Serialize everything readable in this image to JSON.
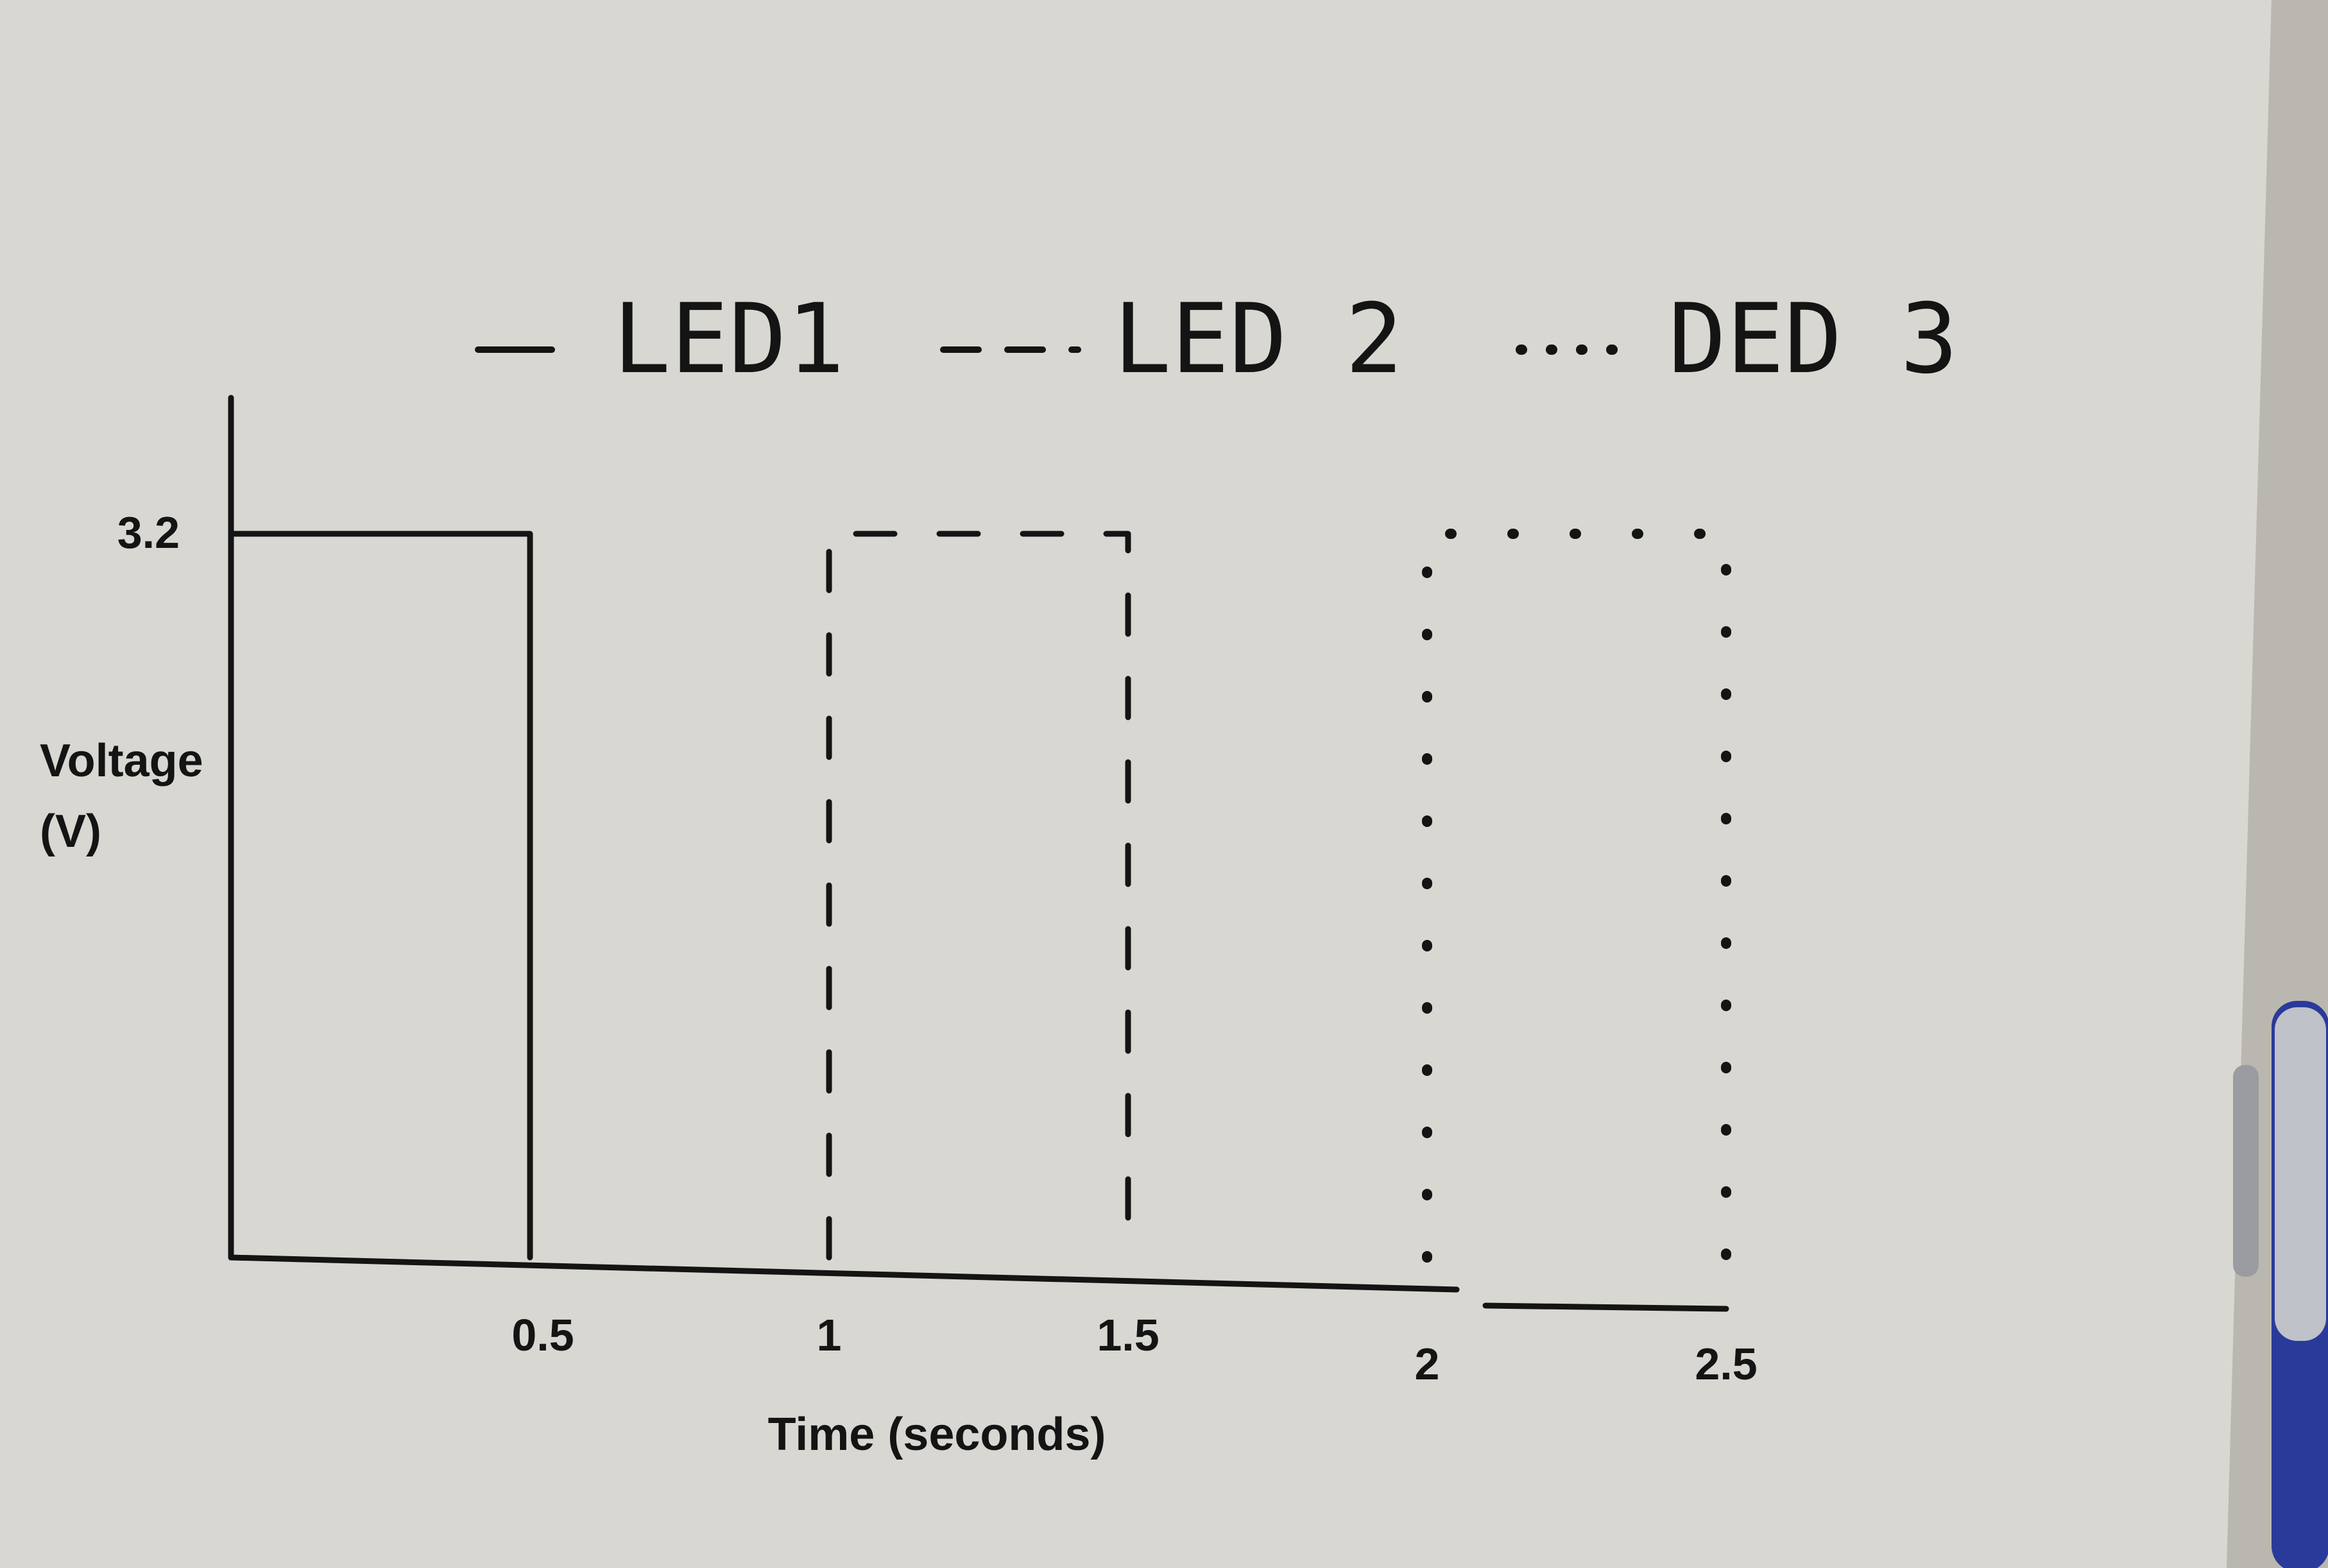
{
  "chart_data": {
    "type": "line",
    "title": "",
    "xlabel": "Time (seconds)",
    "ylabel": "Voltage (V)",
    "ylabel_lines": [
      "Voltage",
      "(V)"
    ],
    "x_ticks": [
      "0.5",
      "1",
      "1.5",
      "2",
      "2.5"
    ],
    "y_ticks": [
      "3.2"
    ],
    "xlim": [
      0,
      2.5
    ],
    "ylim": [
      0,
      3.2
    ],
    "grid": false,
    "legend_position": "top",
    "series": [
      {
        "name": "LED1",
        "legend_label": "LED1",
        "style": "solid",
        "x": [
          0,
          0,
          0.5,
          0.5
        ],
        "y": [
          0,
          3.2,
          3.2,
          0
        ]
      },
      {
        "name": "LED2",
        "legend_label": "LED 2",
        "style": "dashed",
        "x": [
          1,
          1,
          1.5,
          1.5
        ],
        "y": [
          0,
          3.2,
          3.2,
          0
        ]
      },
      {
        "name": "LED3",
        "legend_label": "DED 3",
        "style": "dotted",
        "x": [
          2,
          2,
          2.5,
          2.5
        ],
        "y": [
          0,
          3.2,
          3.2,
          0
        ]
      }
    ]
  },
  "colors": {
    "ink": "#141414",
    "paper": "#d7d6d1",
    "background": "#c9c7c0",
    "pen_blue": "#2a3a9a"
  },
  "icons": {
    "pen": "pen-icon"
  }
}
